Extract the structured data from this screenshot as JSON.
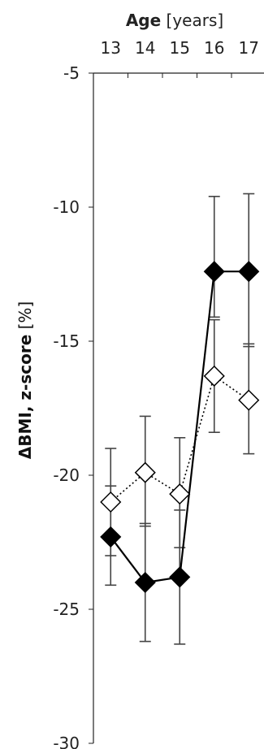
{
  "chart_data": {
    "type": "line",
    "x_title_bold": "Age",
    "x_title_rest": " [years]",
    "y_title_bold": "ΔBMI, z-score",
    "y_title_rest": " [%]",
    "x": [
      13,
      14,
      15,
      16,
      17
    ],
    "x_tick_labels": [
      "13",
      "14",
      "15",
      "16",
      "17"
    ],
    "ylim": [
      -30,
      -5
    ],
    "y_ticks": [
      -5,
      -10,
      -15,
      -20,
      -25,
      -30
    ],
    "y_tick_labels": [
      "-5",
      "-10",
      "-15",
      "-20",
      "-25",
      "-30"
    ],
    "x_axis_position": "top",
    "grid": false,
    "series": [
      {
        "marker": "filled-diamond",
        "line_style": "solid",
        "color": "#000000",
        "values": [
          -22.3,
          -24.0,
          -23.8,
          -12.4,
          -12.4
        ],
        "err_low": [
          -24.1,
          -26.2,
          -26.3,
          -14.1,
          -15.2
        ],
        "err_high": [
          -20.4,
          -21.8,
          -21.3,
          -9.6,
          -9.5
        ]
      },
      {
        "marker": "open-diamond",
        "line_style": "dotted",
        "color": "#000000",
        "values": [
          -21.0,
          -19.9,
          -20.7,
          -16.3,
          -17.2
        ],
        "err_low": [
          -23.0,
          -21.9,
          -22.7,
          -18.4,
          -19.2
        ],
        "err_high": [
          -19.0,
          -17.8,
          -18.6,
          -14.2,
          -15.1
        ]
      }
    ]
  }
}
